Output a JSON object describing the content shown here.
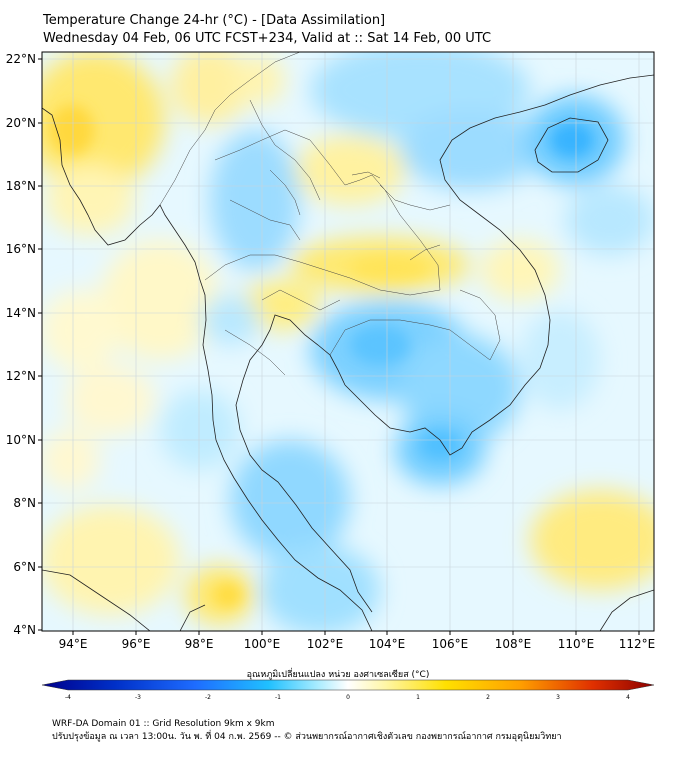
{
  "title": {
    "line1": "Temperature Change 24-hr (°C) - [Data Assimilation]",
    "line2": "Wednesday 04 Feb, 06 UTC FCST+234, Valid at :: Sat 14 Feb, 00 UTC"
  },
  "map": {
    "lat_ticks": [
      "22°N",
      "20°N",
      "18°N",
      "16°N",
      "14°N",
      "12°N",
      "10°N",
      "8°N",
      "6°N",
      "4°N"
    ],
    "lon_ticks": [
      "94°E",
      "96°E",
      "98°E",
      "100°E",
      "102°E",
      "104°E",
      "106°E",
      "108°E",
      "110°E",
      "112°E"
    ],
    "lat_range": [
      4,
      22
    ],
    "lon_range": [
      93,
      112.5
    ]
  },
  "colorbar": {
    "label": "อุณหภูมิเปลี่ยนแปลง หน่วย องศาเซลเซียส (°C)",
    "ticks": [
      "-4",
      "-3",
      "-2",
      "-1",
      "0",
      "1",
      "2",
      "3",
      "4"
    ],
    "range": [
      -4,
      4
    ],
    "colors": [
      "#00008b",
      "#0033cc",
      "#1e90ff",
      "#00bfff",
      "#a0e6ff",
      "#ffffff",
      "#fff5a0",
      "#ffe000",
      "#ffa500",
      "#e03000",
      "#8b0000"
    ]
  },
  "footer": {
    "line1": "WRF-DA Domain 01 :: Grid Resolution 9km x 9km",
    "line2": "ปรับปรุงข้อมูล ณ เวลา 13:00น. วัน พ. ที่ 04 ก.พ. 2569 -- © ส่วนพยากรณ์อากาศเชิงตัวเลข กองพยากรณ์อากาศ กรมอุตุนิยมวิทยา"
  }
}
